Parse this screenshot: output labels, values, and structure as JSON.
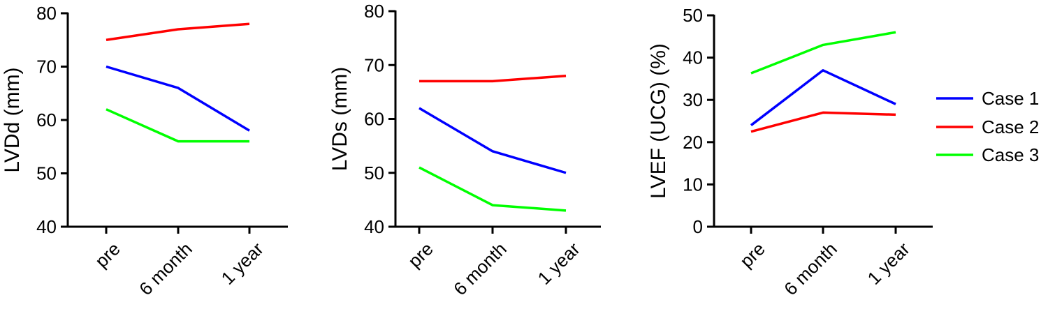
{
  "chart_data": [
    {
      "type": "line",
      "categories": [
        "pre",
        "6 month",
        "1 year"
      ],
      "ylabel": "LVDd (mm)",
      "ylim": [
        40,
        80
      ],
      "yticks": [
        "40",
        "50",
        "60",
        "70",
        "80"
      ],
      "series": [
        {
          "name": "Case 1",
          "color": "#0000ff",
          "values": [
            70,
            66,
            58
          ]
        },
        {
          "name": "Case 2",
          "color": "#ff0000",
          "values": [
            75,
            77,
            78
          ]
        },
        {
          "name": "Case 3",
          "color": "#00ff00",
          "values": [
            62,
            56,
            56
          ]
        }
      ]
    },
    {
      "type": "line",
      "categories": [
        "pre",
        "6 month",
        "1 year"
      ],
      "ylabel": "LVDs (mm)",
      "ylim": [
        40,
        80
      ],
      "yticks": [
        "40",
        "50",
        "60",
        "70",
        "80"
      ],
      "series": [
        {
          "name": "Case 1",
          "color": "#0000ff",
          "values": [
            62,
            54,
            50
          ]
        },
        {
          "name": "Case 2",
          "color": "#ff0000",
          "values": [
            67,
            67,
            68
          ]
        },
        {
          "name": "Case 3",
          "color": "#00ff00",
          "values": [
            51,
            44,
            43
          ]
        }
      ]
    },
    {
      "type": "line",
      "categories": [
        "pre",
        "6 month",
        "1 year"
      ],
      "ylabel": "LVEF (UCG) (%)",
      "ylim": [
        0,
        50
      ],
      "yticks": [
        "0",
        "10",
        "20",
        "30",
        "40",
        "50"
      ],
      "series": [
        {
          "name": "Case 1",
          "color": "#0000ff",
          "values": [
            24,
            37,
            29
          ]
        },
        {
          "name": "Case 2",
          "color": "#ff0000",
          "values": [
            22.5,
            27,
            26.5
          ]
        },
        {
          "name": "Case 3",
          "color": "#00ff00",
          "values": [
            36.3,
            43,
            46
          ]
        }
      ]
    }
  ],
  "legend": {
    "placement": "right",
    "items": [
      {
        "label": "Case 1",
        "color": "#0000ff"
      },
      {
        "label": "Case 2",
        "color": "#ff0000"
      },
      {
        "label": "Case 3",
        "color": "#00ff00"
      }
    ]
  }
}
